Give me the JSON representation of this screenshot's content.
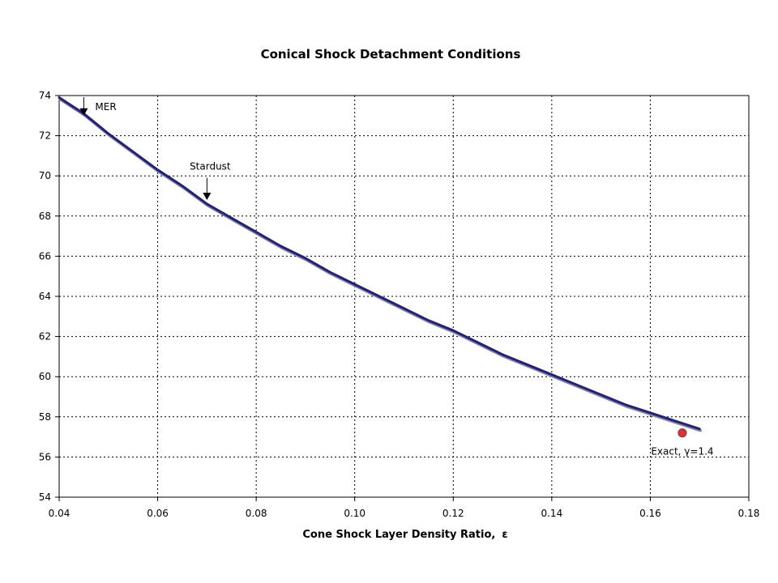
{
  "chart_data": {
    "type": "line",
    "title": "Conical Shock Detachment Conditions",
    "xlabel": "Cone Shock Layer Density Ratio,",
    "xlabel_symbol": "ε",
    "ylabel": "",
    "xlim": [
      0.04,
      0.18
    ],
    "ylim": [
      54,
      74
    ],
    "x_ticks": [
      "0.04",
      "0.06",
      "0.08",
      "0.10",
      "0.12",
      "0.14",
      "0.16",
      "0.18"
    ],
    "y_ticks": [
      "54",
      "56",
      "58",
      "60",
      "62",
      "64",
      "66",
      "68",
      "70",
      "72",
      "74"
    ],
    "grid": true,
    "series": [
      {
        "color": "#1f1f8a",
        "x": [
          0.04,
          0.045,
          0.05,
          0.055,
          0.06,
          0.065,
          0.07,
          0.075,
          0.08,
          0.085,
          0.09,
          0.095,
          0.1,
          0.105,
          0.11,
          0.115,
          0.12,
          0.125,
          0.13,
          0.135,
          0.14,
          0.145,
          0.15,
          0.155,
          0.16,
          0.165,
          0.17
        ],
        "y": [
          73.9,
          73.1,
          72.1,
          71.2,
          70.3,
          69.5,
          68.6,
          67.9,
          67.2,
          66.5,
          65.9,
          65.2,
          64.6,
          64.0,
          63.4,
          62.8,
          62.3,
          61.7,
          61.1,
          60.6,
          60.1,
          59.6,
          59.1,
          58.6,
          58.2,
          57.8,
          57.4
        ]
      }
    ],
    "points": [
      {
        "label": "Exact, γ=1.4",
        "x": 0.1665,
        "y": 57.2,
        "color": "#dd3333"
      }
    ],
    "annotations": [
      {
        "text": "MER",
        "arrow_x": 0.045,
        "arrow_tip_y": 73.0
      },
      {
        "text": "Stardust",
        "arrow_x": 0.07,
        "arrow_tip_y": 68.8
      }
    ]
  }
}
